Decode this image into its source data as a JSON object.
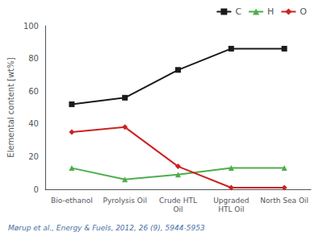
{
  "chart_data": {
    "type": "line",
    "categories": [
      "Bio-ethanol",
      "Pyrolysis Oil",
      "Crude HTL\nOil",
      "Upgraded\nHTL Oil",
      "North Sea Oil"
    ],
    "series": [
      {
        "name": "C",
        "color": "#1a1a1a",
        "marker": "square",
        "values": [
          52,
          56,
          73,
          86,
          86
        ]
      },
      {
        "name": "H",
        "color": "#4cae4c",
        "marker": "triangle",
        "values": [
          13,
          6,
          9,
          13,
          13
        ]
      },
      {
        "name": "O",
        "color": "#cc2222",
        "marker": "diamond",
        "values": [
          35,
          38,
          14,
          1,
          1
        ]
      }
    ],
    "ylabel": "Elemental content [wt%]",
    "ylim": [
      0,
      100
    ],
    "yticks": [
      0,
      20,
      40,
      60,
      80,
      100
    ],
    "grid": false,
    "legend": "upper right",
    "annotations": [
      "Mørup et al., Energy & Fuels, 2012, 26 (9), 5944-5953"
    ]
  }
}
